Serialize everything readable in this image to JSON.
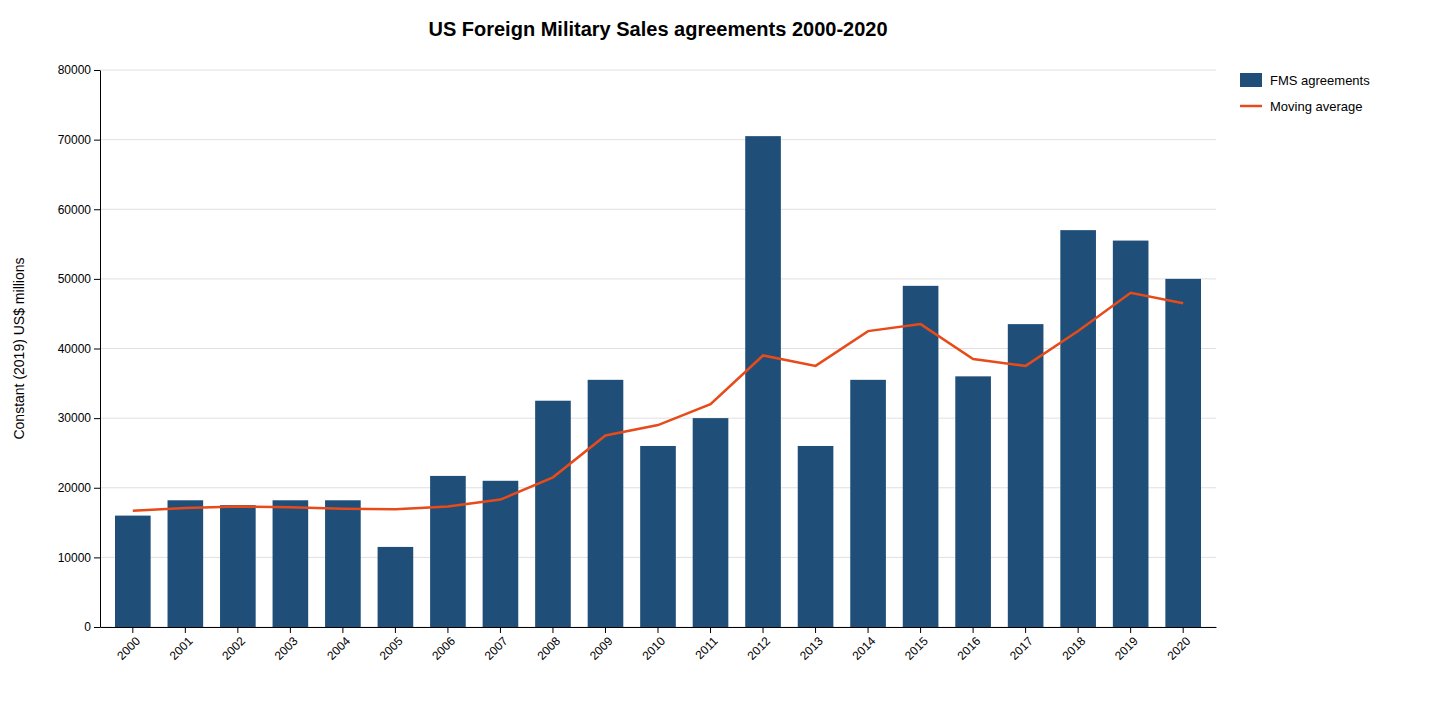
{
  "chart_data": {
    "type": "bar",
    "title": "US Foreign Military Sales agreements 2000-2020",
    "y_label": "Constant (2019) US$ millions",
    "categories": [
      "2000",
      "2001",
      "2002",
      "2003",
      "2004",
      "2005",
      "2006",
      "2007",
      "2008",
      "2009",
      "2010",
      "2011",
      "2012",
      "2013",
      "2014",
      "2015",
      "2016",
      "2017",
      "2018",
      "2019",
      "2020"
    ],
    "series": [
      {
        "name": "FMS agreements",
        "type": "bar",
        "color": "#1F4E79",
        "values": [
          16000,
          18200,
          17500,
          18200,
          18200,
          11500,
          21700,
          21000,
          32500,
          35500,
          26000,
          30000,
          70500,
          26000,
          35500,
          49000,
          36000,
          43500,
          57000,
          55500,
          50000
        ]
      },
      {
        "name": "Moving average",
        "type": "line",
        "color": "#E84B1A",
        "values": [
          16700,
          17100,
          17300,
          17200,
          17000,
          16900,
          17300,
          18300,
          21500,
          27500,
          29000,
          32000,
          39000,
          37500,
          42500,
          43500,
          38500,
          37500,
          42500,
          48000,
          46500
        ]
      }
    ],
    "ylim": [
      0,
      80000
    ],
    "yticks": [
      0,
      10000,
      20000,
      30000,
      40000,
      50000,
      60000,
      70000,
      80000
    ],
    "grid": true,
    "legend": "right"
  }
}
